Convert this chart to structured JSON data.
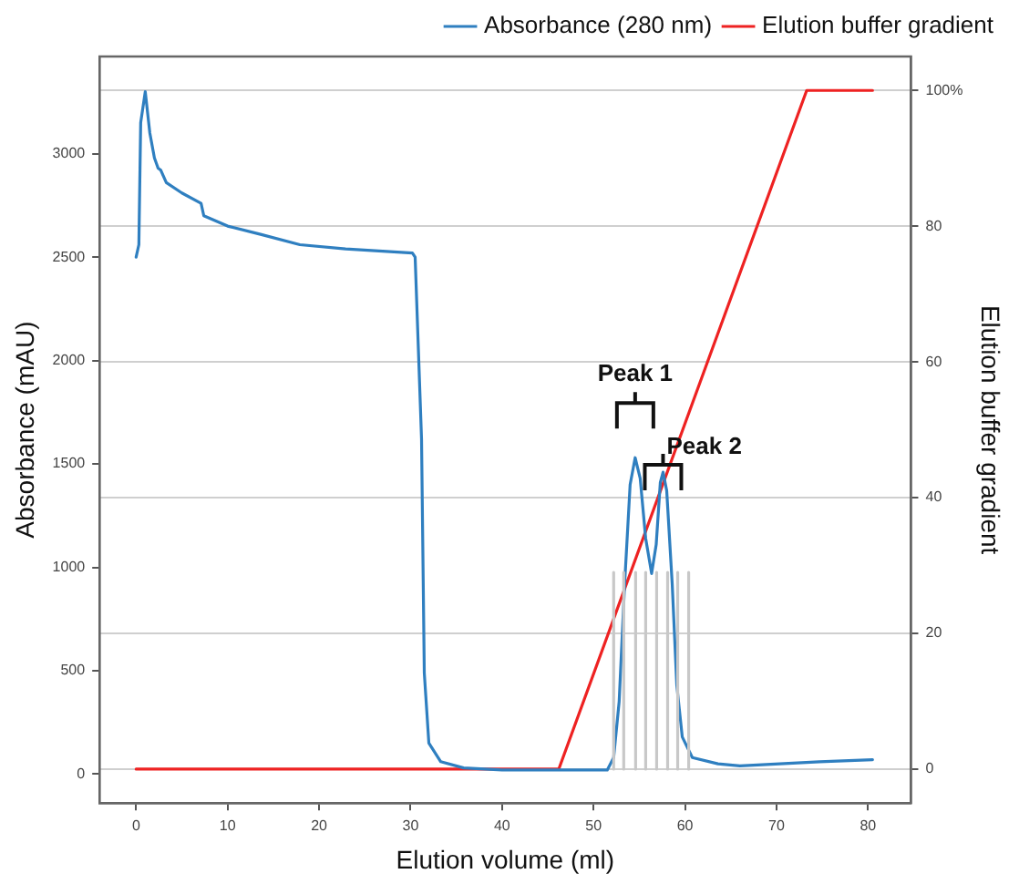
{
  "chart_data": {
    "type": "line",
    "xlabel": "Elution volume (ml)",
    "ylabel": "Absorbance (mAU)",
    "y2label": "Elution buffer gradient",
    "xlim": [
      -4,
      84.7
    ],
    "xticks": [
      0,
      10,
      20,
      30,
      40,
      50,
      60,
      70,
      80
    ],
    "ylim": [
      -140,
      3470
    ],
    "yticks": [
      0,
      500,
      1000,
      1500,
      2000,
      2500,
      3000
    ],
    "y2lim": [
      -5,
      105
    ],
    "y2ticks": [
      0,
      20,
      40,
      60,
      80,
      {
        "value": 100,
        "label": "100%"
      }
    ],
    "grid": "y",
    "legend": "top",
    "marker": "none",
    "line_style": "solid",
    "series": [
      {
        "name": "Absorbance (280 nm)",
        "color": "#2f7fc0",
        "x": [
          0,
          0.3,
          0.5,
          1.0,
          1.5,
          2.0,
          2.4,
          2.7,
          3.3,
          5,
          7.1,
          7.4,
          10,
          13.6,
          17.9,
          22.9,
          30.2,
          30.5,
          31.2,
          31.5,
          32.0,
          33.3,
          35.8,
          40,
          45,
          51.5,
          52.2,
          52.8,
          53.4,
          54.0,
          54.55,
          55.1,
          55.7,
          56.35,
          56.85,
          57.3,
          57.6,
          58.0,
          58.6,
          59.1,
          59.7,
          60.8,
          63.6,
          66,
          74.7,
          80.5
        ],
        "values": [
          2500,
          2560,
          3150,
          3300,
          3100,
          2980,
          2930,
          2920,
          2860,
          2810,
          2760,
          2700,
          2650,
          2610,
          2560,
          2540,
          2520,
          2500,
          1620,
          490,
          150,
          60,
          30,
          20,
          20,
          20,
          80,
          350,
          920,
          1400,
          1530,
          1430,
          1140,
          970,
          1110,
          1410,
          1460,
          1370,
          920,
          430,
          180,
          80,
          50,
          40,
          60,
          70
        ]
      },
      {
        "name": "Elution buffer gradient",
        "color": "#ee2222",
        "axis": "y2",
        "x": [
          0,
          46.2,
          73.3,
          80.5
        ],
        "values": [
          0,
          0,
          100,
          100
        ]
      },
      {
        "color": "#c8c8c8",
        "axis": "y2",
        "x": [
          52.2,
          52.2,
          null,
          53.3,
          53.3,
          null,
          54.6,
          54.6,
          null,
          55.7,
          55.7,
          null,
          56.9,
          56.9,
          null,
          58.1,
          58.1,
          null,
          59.2,
          59.2,
          null,
          60.4,
          60.4
        ],
        "values": [
          0,
          29,
          null,
          0,
          29,
          null,
          0,
          29,
          null,
          0,
          29,
          null,
          0,
          29,
          null,
          0,
          29,
          null,
          0,
          29,
          null,
          0,
          29
        ]
      }
    ],
    "annotations": [
      {
        "text": "Peak 1",
        "x": 54.55,
        "y": 1530
      },
      {
        "text": "Peak 2",
        "x": 57.6,
        "y": 1460
      }
    ]
  }
}
